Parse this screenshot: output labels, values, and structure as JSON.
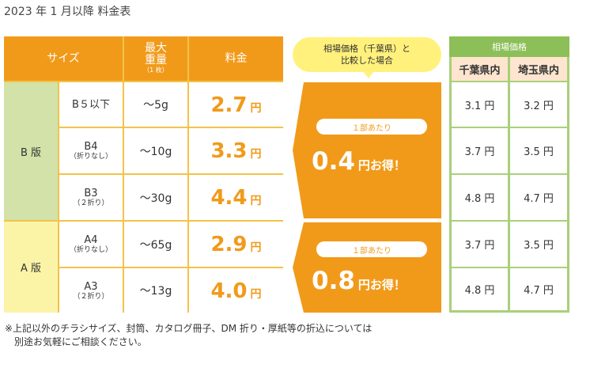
{
  "title": "2023 年 1 月以降 料金表",
  "header": {
    "size": "サイズ",
    "weight_l1": "最大",
    "weight_l2": "重量",
    "weight_note": "（1 枚）",
    "price": "料金"
  },
  "groups": {
    "b": "B 版",
    "a": "A 版"
  },
  "rows": [
    {
      "size": "B５以下",
      "note": "",
      "weight": "～5g",
      "price": "2.7",
      "unit": "円"
    },
    {
      "size": "B4",
      "note": "（折りなし）",
      "weight": "～10g",
      "price": "3.3",
      "unit": "円"
    },
    {
      "size": "B3",
      "note": "（２折り）",
      "weight": "～30g",
      "price": "4.4",
      "unit": "円"
    },
    {
      "size": "A4",
      "note": "（折りなし）",
      "weight": "～65g",
      "price": "2.9",
      "unit": "円"
    },
    {
      "size": "A3",
      "note": "（２折り）",
      "weight": "～13g",
      "price": "4.0",
      "unit": "円"
    }
  ],
  "comparison": {
    "bubble_l1": "相場価格（千葉県）と",
    "bubble_l2": "比較した場合",
    "b": {
      "label": "１部あたり",
      "value": "0.4",
      "suffix": "円お得！"
    },
    "a": {
      "label": "１部あたり",
      "value": "0.8",
      "suffix": "円お得！"
    }
  },
  "market": {
    "title": "相場価格",
    "col1": "千葉県内",
    "col2": "埼玉県内",
    "rows": [
      {
        "chiba": "3.1 円",
        "saitama": "3.2 円"
      },
      {
        "chiba": "3.7 円",
        "saitama": "3.5 円"
      },
      {
        "chiba": "4.8 円",
        "saitama": "4.7 円"
      },
      {
        "chiba": "3.7 円",
        "saitama": "3.5 円"
      },
      {
        "chiba": "4.8 円",
        "saitama": "4.7 円"
      }
    ]
  },
  "note": {
    "line1": "※上記以外のチラシサイズ、封筒、カタログ冊子、DM 折り・厚紙等の折込については",
    "line2": "　別途お気軽にご相談ください。"
  },
  "colors": {
    "orange": "#f19a1a",
    "price_orange": "#f19a1a",
    "b_group": "#d2e2a8",
    "a_group": "#fbf4a7",
    "market_green": "#8cbf58",
    "bubble_yellow": "#fff17c"
  }
}
